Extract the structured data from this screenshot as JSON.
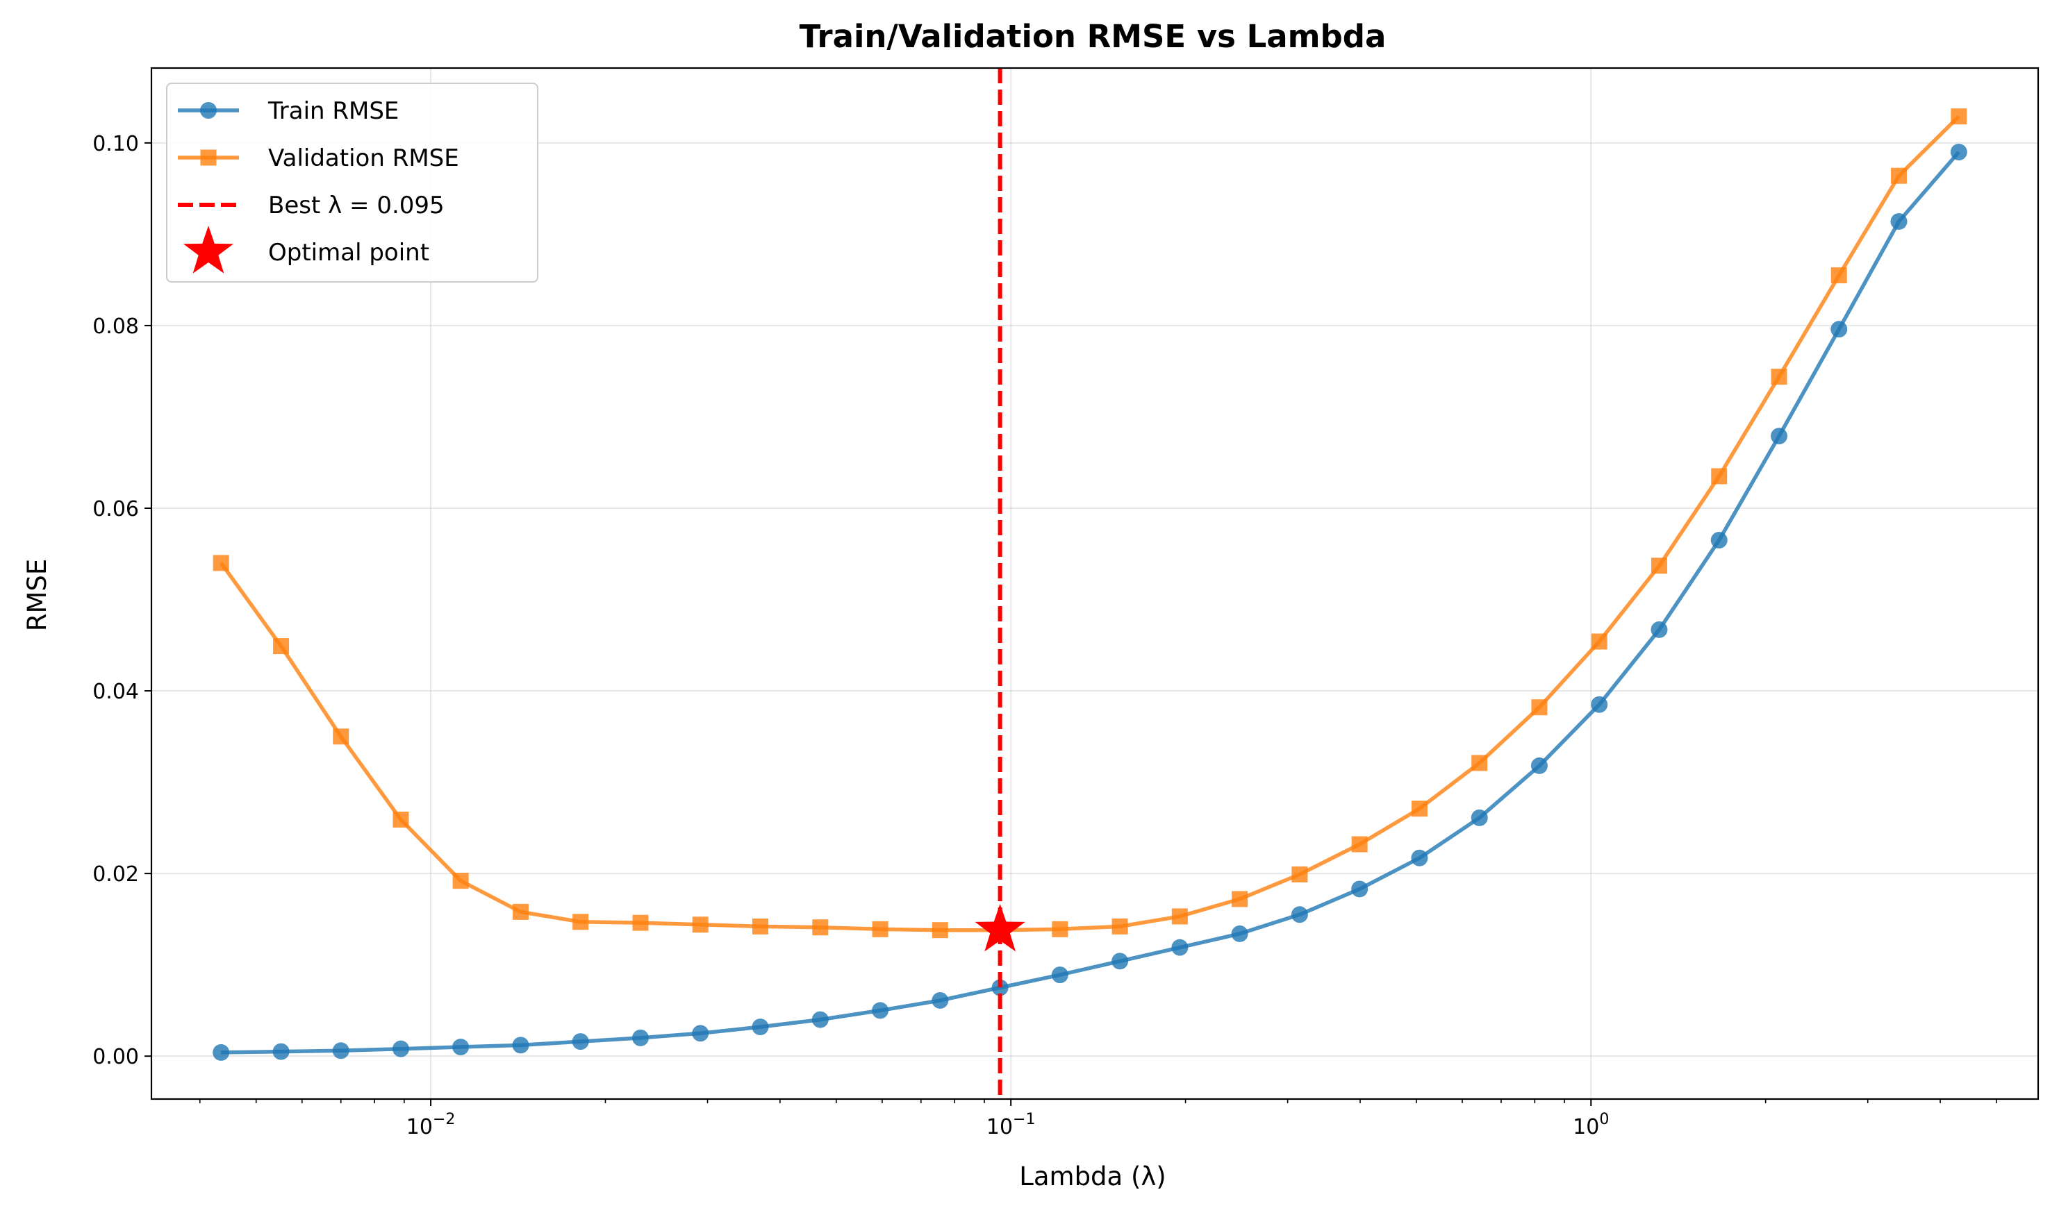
{
  "chart_data": {
    "type": "line",
    "title": "Train/Validation RMSE vs Lambda",
    "xlabel": "Lambda (λ)",
    "ylabel": "RMSE",
    "xscale": "log",
    "xlim": [
      0.0033,
      5.9
    ],
    "ylim": [
      -0.0047,
      0.1082
    ],
    "grid": true,
    "legend_position": "top-left",
    "x_ticks": [
      {
        "value": 0.01,
        "base": "10",
        "exp": "−2"
      },
      {
        "value": 0.1,
        "base": "10",
        "exp": "−1"
      },
      {
        "value": 1,
        "base": "10",
        "exp": "0"
      }
    ],
    "y_ticks": [
      {
        "value": 0.0,
        "label": "0.00"
      },
      {
        "value": 0.02,
        "label": "0.02"
      },
      {
        "value": 0.04,
        "label": "0.04"
      },
      {
        "value": 0.06,
        "label": "0.06"
      },
      {
        "value": 0.08,
        "label": "0.08"
      },
      {
        "value": 0.1,
        "label": "0.10"
      }
    ],
    "x": [
      0.00435,
      0.00552,
      0.007,
      0.00888,
      0.01126,
      0.01429,
      0.01812,
      0.02299,
      0.02916,
      0.03699,
      0.04693,
      0.05953,
      0.07551,
      0.09579,
      0.12151,
      0.15414,
      0.19553,
      0.24803,
      0.31464,
      0.39913,
      0.5063,
      0.64226,
      0.81472,
      1.03349,
      1.31101,
      1.66305,
      2.10962,
      2.6761,
      3.39471,
      4.30628
    ],
    "series": [
      {
        "name": "Train RMSE",
        "color": "#1f77b4",
        "marker": "circle",
        "values": [
          0.0004,
          0.0005,
          0.0006,
          0.0008,
          0.001,
          0.0012,
          0.0016,
          0.002,
          0.0025,
          0.0032,
          0.004,
          0.005,
          0.0061,
          0.0075,
          0.0089,
          0.0104,
          0.0119,
          0.0134,
          0.0155,
          0.0183,
          0.0217,
          0.0261,
          0.0318,
          0.0385,
          0.0467,
          0.0565,
          0.0679,
          0.0796,
          0.0914,
          0.099
        ]
      },
      {
        "name": "Validation RMSE",
        "color": "#ff7f0e",
        "marker": "square",
        "values": [
          0.054,
          0.0449,
          0.035,
          0.0259,
          0.0192,
          0.0158,
          0.0147,
          0.0146,
          0.0144,
          0.0142,
          0.0141,
          0.0139,
          0.0138,
          0.0138,
          0.0139,
          0.0142,
          0.0153,
          0.0172,
          0.0199,
          0.0232,
          0.0271,
          0.0321,
          0.0382,
          0.0454,
          0.0537,
          0.0635,
          0.0744,
          0.0855,
          0.0964,
          0.1029
        ]
      }
    ],
    "best_line": {
      "name": "Best λ = 0.095",
      "x": 0.0958,
      "color": "#ff0000"
    },
    "optimal_point": {
      "name": "Optimal point",
      "x": 0.0958,
      "y": 0.0138,
      "color": "#ff0000"
    }
  }
}
